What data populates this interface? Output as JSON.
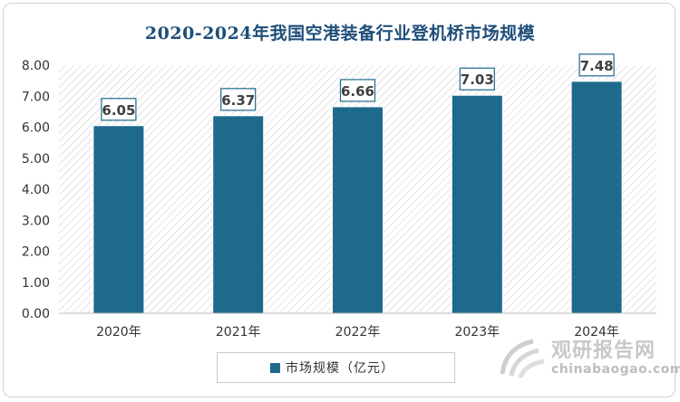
{
  "chart_data": {
    "type": "bar",
    "title": "2020-2024年我国空港装备行业登机桥市场规模",
    "categories": [
      "2020年",
      "2021年",
      "2022年",
      "2023年",
      "2024年"
    ],
    "series": [
      {
        "name": "市场规模（亿元）",
        "values": [
          6.05,
          6.37,
          6.66,
          7.03,
          7.48
        ]
      }
    ],
    "data_labels": [
      "6.05",
      "6.37",
      "6.66",
      "7.03",
      "7.48"
    ],
    "y_ticks": [
      "0.00",
      "1.00",
      "2.00",
      "3.00",
      "4.00",
      "5.00",
      "6.00",
      "7.00",
      "8.00"
    ],
    "ylim": [
      0,
      8
    ],
    "legend_position": "bottom",
    "colors": {
      "bar": "#1e6a8d",
      "title": "#1f4e79",
      "label_border": "#1e6a8d"
    }
  },
  "watermark": {
    "cn": "观研报告网",
    "en": "chinabaogao.com",
    "icon": "chinabaogao-logo-icon"
  }
}
